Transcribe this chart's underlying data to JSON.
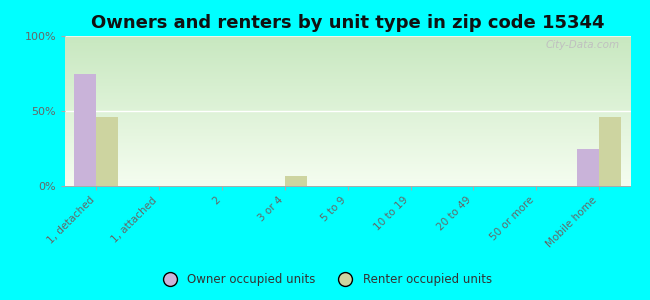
{
  "title": "Owners and renters by unit type in zip code 15344",
  "categories": [
    "1, detached",
    "1, attached",
    "2",
    "3 or 4",
    "5 to 9",
    "10 to 19",
    "20 to 49",
    "50 or more",
    "Mobile home"
  ],
  "owner_values": [
    75,
    0,
    0,
    0,
    0,
    0,
    0,
    0,
    25
  ],
  "renter_values": [
    46,
    0,
    0,
    7,
    0,
    0,
    0,
    0,
    46
  ],
  "owner_color": "#c9b3d9",
  "renter_color": "#cdd4a0",
  "background_color": "#00ffff",
  "gradient_top": "#c8e8c0",
  "gradient_bottom": "#f5fdf0",
  "ylim": [
    0,
    100
  ],
  "yticks": [
    0,
    50,
    100
  ],
  "ytick_labels": [
    "0%",
    "50%",
    "100%"
  ],
  "bar_width": 0.35,
  "title_fontsize": 13,
  "watermark": "City-Data.com"
}
